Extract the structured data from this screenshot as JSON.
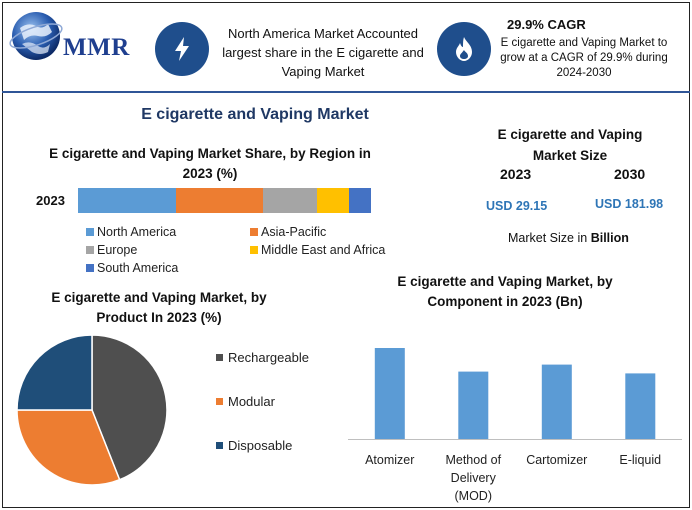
{
  "header": {
    "logo_text": "MMR",
    "na_text": "North America Market Accounted largest share in the E cigarette and Vaping Market",
    "cagr_title": "29.9% CAGR",
    "cagr_text": "E cigarette and Vaping Market to grow at a CAGR of 29.9% during 2024-2030",
    "bolt_icon": "lightning-bolt-icon",
    "fire_icon": "flame-icon"
  },
  "main_title": "E cigarette and Vaping Market",
  "market_size": {
    "title": "E cigarette and Vaping Market Size",
    "year1": "2023",
    "year2": "2030",
    "value1": "USD 29.15",
    "value2": "USD 181.98",
    "unit_prefix": "Market Size in",
    "unit_bold": "Billion"
  },
  "colors": {
    "header_blue": "#1f4e8c",
    "title_navy": "#1f3864",
    "value_blue": "#2e75b6",
    "bar_blue": "#5b9bd5"
  },
  "chart_data": [
    {
      "id": "region",
      "type": "bar",
      "orientation": "horizontal-stacked",
      "title": "E cigarette and Vaping Market Share, by Region in 2023 (%)",
      "categories": [
        "2023"
      ],
      "series": [
        {
          "name": "North America",
          "values": [
            33.5
          ],
          "color": "#5b9bd5"
        },
        {
          "name": "Asia-Pacific",
          "values": [
            29.5
          ],
          "color": "#ed7d31"
        },
        {
          "name": "Europe",
          "values": [
            18.5
          ],
          "color": "#a5a5a5"
        },
        {
          "name": "Middle East and Africa",
          "values": [
            11.0
          ],
          "color": "#ffc000"
        },
        {
          "name": "South America",
          "values": [
            7.5
          ],
          "color": "#4472c4"
        }
      ],
      "xlim": [
        0,
        100
      ],
      "legend": "bottom"
    },
    {
      "id": "product",
      "type": "pie",
      "title": "E cigarette and Vaping Market, by Product In 2023 (%)",
      "labels": [
        "Rechargeable",
        "Modular",
        "Disposable"
      ],
      "values": [
        44,
        31,
        25
      ],
      "colors": [
        "#4f4f4f",
        "#ed7d31",
        "#1f4e79"
      ],
      "legend": "right"
    },
    {
      "id": "component",
      "type": "bar",
      "title": "E cigarette and Vaping Market, by Component in 2023 (Bn)",
      "categories": [
        "Atomizer",
        "Method of Delivery (MOD)",
        "Cartomizer",
        "E-liquid"
      ],
      "category_lines": [
        [
          "Atomizer"
        ],
        [
          "Method of",
          "Delivery",
          "(MOD)"
        ],
        [
          "Cartomizer"
        ],
        [
          "E-liquid"
        ]
      ],
      "values": [
        10.4,
        7.7,
        8.5,
        7.5
      ],
      "ylim": [
        0,
        12
      ],
      "color": "#5b9bd5",
      "xlabel": "",
      "ylabel": ""
    }
  ]
}
